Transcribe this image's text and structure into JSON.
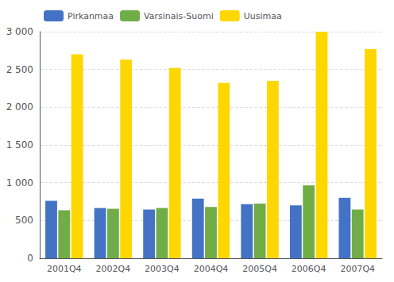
{
  "chart_data": {
    "type": "bar",
    "categories": [
      "2001Q4",
      "2002Q4",
      "2003Q4",
      "2004Q4",
      "2005Q4",
      "2006Q4",
      "2007Q4"
    ],
    "series": [
      {
        "name": "Pirkanmaa",
        "color": "#4472C4",
        "values": [
          760,
          665,
          645,
          790,
          715,
          700,
          800
        ]
      },
      {
        "name": "Varsinais-Suomi",
        "color": "#70AD47",
        "values": [
          635,
          655,
          665,
          680,
          725,
          965,
          645
        ]
      },
      {
        "name": "Uusimaa",
        "color": "#FFD700",
        "values": [
          2700,
          2630,
          2520,
          2320,
          2350,
          3000,
          2770
        ]
      }
    ],
    "ylim": [
      0,
      3000
    ],
    "yticks": [
      0,
      500,
      {
        "value": 1000,
        "label": "1 000"
      },
      {
        "value": 1500,
        "label": "1 500"
      },
      {
        "value": 2000,
        "label": "2 000"
      },
      {
        "value": 2500,
        "label": "2 500"
      },
      {
        "value": 3000,
        "label": "3 000"
      }
    ],
    "grid": true,
    "legend": "upper left"
  }
}
